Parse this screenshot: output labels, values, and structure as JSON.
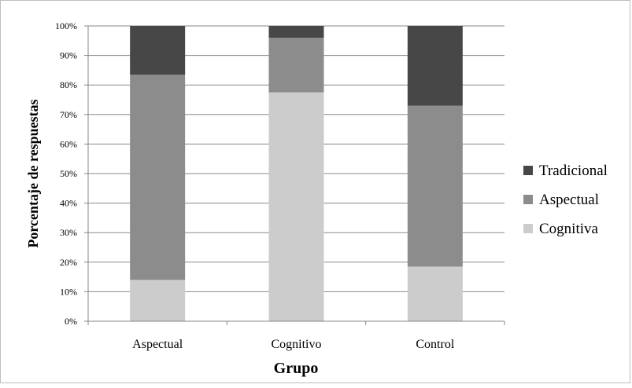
{
  "chart_data": {
    "type": "bar",
    "stacked": true,
    "percent": true,
    "categories": [
      "Aspectual",
      "Cognitivo",
      "Control"
    ],
    "series": [
      {
        "name": "Cognitiva",
        "values": [
          14,
          77.5,
          18.5
        ],
        "color": "#cccccc"
      },
      {
        "name": "Aspectual",
        "values": [
          69.5,
          18.5,
          54.5
        ],
        "color": "#8c8c8c"
      },
      {
        "name": "Tradicional",
        "values": [
          16.5,
          4,
          27
        ],
        "color": "#474747"
      }
    ],
    "legend_order": [
      "Tradicional",
      "Aspectual",
      "Cognitiva"
    ],
    "xlabel": "Grupo",
    "ylabel": "Porcentaje de respuestas",
    "ylim": [
      0,
      100
    ],
    "yticks": [
      "0%",
      "10%",
      "20%",
      "30%",
      "40%",
      "50%",
      "60%",
      "70%",
      "80%",
      "90%",
      "100%"
    ],
    "grid": true,
    "legend_position": "right"
  }
}
